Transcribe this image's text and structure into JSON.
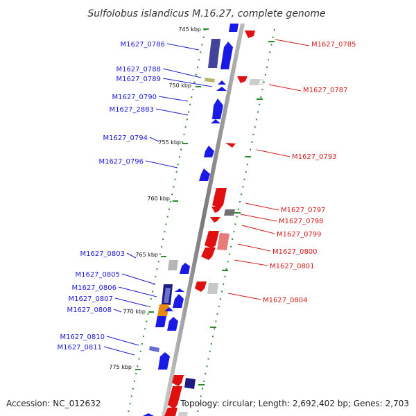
{
  "title": "Sulfolobus islandicus M.16.27, complete genome",
  "footer": {
    "accession": "Accession: NC_012632",
    "topology": "Topology: circular; Length: 2,692,402 bp; Genes: 2,703"
  },
  "kbp_labels": [
    "745 kbp",
    "750 kbp",
    "755 kbp",
    "760 kbp",
    "765 kbp",
    "770 kbp",
    "775 kbp"
  ],
  "left_genes": [
    "M1627_0786",
    "M1627_0788",
    "M1627_0789",
    "M1627_0790",
    "M1627_2883",
    "M1627_0794",
    "M1627_0796",
    "M1627_0803",
    "M1627_0805",
    "M1627_0806",
    "M1627_0807",
    "M1627_0808",
    "M1627_0810",
    "M1627_0811"
  ],
  "right_genes": [
    "M1627_0785",
    "M1627_0787",
    "M1627_0793",
    "M1627_0797",
    "M1627_0798",
    "M1627_0799",
    "M1627_0800",
    "M1627_0801",
    "M1627_0804"
  ],
  "colors": {
    "backbone": "#8a8a8a",
    "tick": "#2a8a2a",
    "forward_strand": "#1a1ae6",
    "reverse_strand": "#e01010",
    "label_left": "#1a1ad6",
    "label_right": "#d41a1a"
  }
}
